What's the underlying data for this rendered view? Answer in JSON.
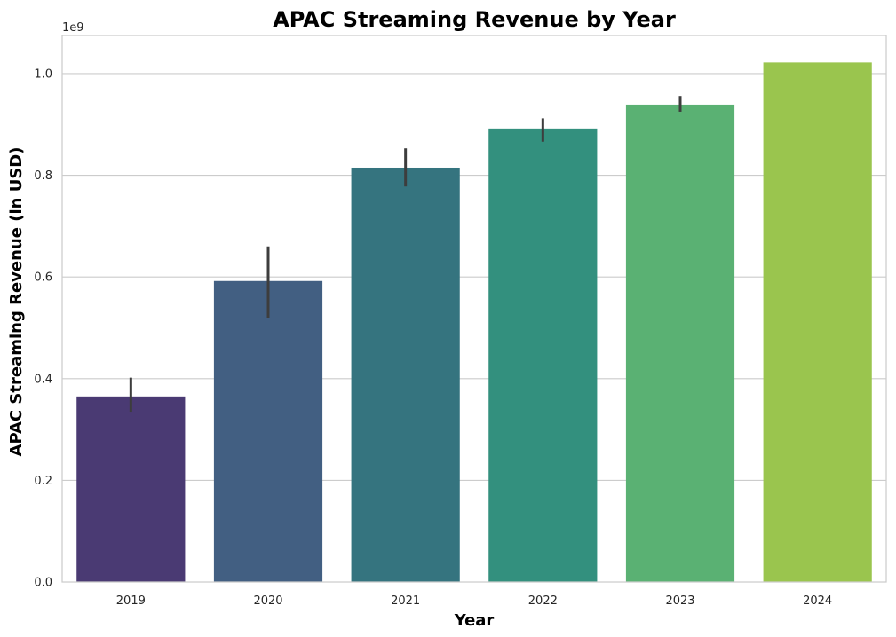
{
  "chart_data": {
    "type": "bar",
    "title": "APAC Streaming Revenue by Year",
    "xlabel": "Year",
    "ylabel": "APAC Streaming Revenue (in USD)",
    "y_offset_label": "1e9",
    "scale_factor": 1000000000,
    "categories": [
      "2019",
      "2020",
      "2021",
      "2022",
      "2023",
      "2024"
    ],
    "values": [
      365000000,
      592000000,
      815000000,
      892000000,
      939000000,
      1022000000
    ],
    "error_low": [
      335000000,
      520000000,
      778000000,
      866000000,
      925000000,
      1022000000
    ],
    "error_high": [
      402000000,
      660000000,
      853000000,
      912000000,
      956000000,
      1022000000
    ],
    "colors": [
      "#4a3a73",
      "#425f82",
      "#35747f",
      "#33907e",
      "#5ab173",
      "#9ac54e"
    ],
    "ylim": [
      0,
      1075000000
    ],
    "yticks": [
      0,
      0.2,
      0.4,
      0.6,
      0.8,
      1.0
    ],
    "ytick_labels": [
      "0.0",
      "0.2",
      "0.4",
      "0.6",
      "0.8",
      "1.0"
    ],
    "grid": "horizontal",
    "legend": "none"
  }
}
